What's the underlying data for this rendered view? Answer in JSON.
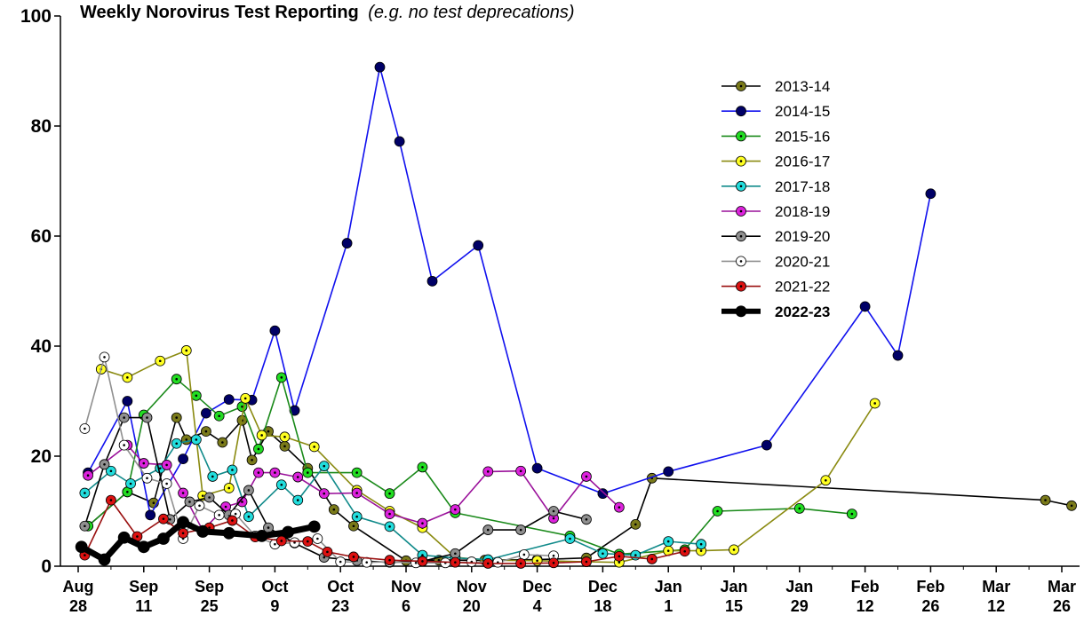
{
  "chart_data": {
    "type": "line",
    "title": "Weekly Norovirus Test Reporting",
    "subtitle": "(e.g. no test deprecations)",
    "xlabel": "",
    "ylabel": "",
    "ylim": [
      0,
      100
    ],
    "yticks": [
      0,
      20,
      40,
      60,
      80,
      100
    ],
    "xlim": [
      0,
      30.5
    ],
    "x_ticks": [
      {
        "x": 0,
        "line1": "Aug",
        "line2": "28"
      },
      {
        "x": 2,
        "line1": "Sep",
        "line2": "11"
      },
      {
        "x": 4,
        "line1": "Sep",
        "line2": "25"
      },
      {
        "x": 6,
        "line1": "Oct",
        "line2": "9"
      },
      {
        "x": 8,
        "line1": "Oct",
        "line2": "23"
      },
      {
        "x": 10,
        "line1": "Nov",
        "line2": "6"
      },
      {
        "x": 12,
        "line1": "Nov",
        "line2": "20"
      },
      {
        "x": 14,
        "line1": "Dec",
        "line2": "4"
      },
      {
        "x": 16,
        "line1": "Dec",
        "line2": "18"
      },
      {
        "x": 18,
        "line1": "Jan",
        "line2": "1"
      },
      {
        "x": 20,
        "line1": "Jan",
        "line2": "15"
      },
      {
        "x": 22,
        "line1": "Jan",
        "line2": "29"
      },
      {
        "x": 24,
        "line1": "Feb",
        "line2": "12"
      },
      {
        "x": 26,
        "line1": "Feb",
        "line2": "26"
      },
      {
        "x": 28,
        "line1": "Mar",
        "line2": "12"
      },
      {
        "x": 30,
        "line1": "Mar",
        "line2": "26"
      }
    ],
    "legend_position": "top-right",
    "series": [
      {
        "name": "2013-14",
        "color": "#000000",
        "fill": "#7a7a1a",
        "dot": "#000000",
        "points": [
          [
            0.3,
            7.3
          ],
          [
            1.5,
            13.5
          ],
          [
            2.3,
            11.5
          ],
          [
            3.0,
            27.0
          ],
          [
            3.3,
            23.0
          ],
          [
            3.9,
            24.5
          ],
          [
            4.4,
            22.5
          ],
          [
            5.0,
            26.5
          ],
          [
            5.3,
            19.3
          ],
          [
            5.8,
            24.5
          ],
          [
            6.3,
            21.8
          ],
          [
            7.0,
            17.8
          ],
          [
            7.8,
            10.3
          ],
          [
            8.4,
            7.3
          ],
          [
            10.0,
            1.0
          ],
          [
            11.0,
            1.1
          ],
          [
            12.4,
            1.1
          ],
          [
            14.0,
            1.2
          ],
          [
            15.5,
            1.5
          ],
          [
            17.0,
            7.6
          ],
          [
            17.5,
            16.0
          ],
          [
            29.5,
            12.0
          ],
          [
            30.3,
            11.0
          ]
        ]
      },
      {
        "name": "2014-15",
        "color": "#1010ee",
        "fill": "#000066",
        "dot": "#000066",
        "points": [
          [
            0.3,
            17.0
          ],
          [
            1.5,
            30.0
          ],
          [
            2.2,
            9.3
          ],
          [
            3.2,
            19.5
          ],
          [
            3.9,
            27.8
          ],
          [
            4.6,
            30.3
          ],
          [
            5.3,
            30.2
          ],
          [
            6.0,
            42.8
          ],
          [
            6.6,
            28.3
          ],
          [
            8.2,
            58.7
          ],
          [
            9.2,
            90.7
          ],
          [
            9.8,
            77.2
          ],
          [
            10.8,
            51.8
          ],
          [
            12.2,
            58.3
          ],
          [
            14.0,
            17.8
          ],
          [
            16.0,
            13.2
          ],
          [
            18.0,
            17.2
          ],
          [
            21.0,
            22.0
          ],
          [
            24.0,
            47.2
          ],
          [
            25.0,
            38.3
          ],
          [
            26.0,
            67.7
          ]
        ]
      },
      {
        "name": "2015-16",
        "color": "#1a8a1a",
        "fill": "#22dd22",
        "dot": "#000000",
        "points": [
          [
            0.3,
            7.3
          ],
          [
            1.5,
            13.5
          ],
          [
            2.0,
            27.5
          ],
          [
            3.0,
            34.0
          ],
          [
            3.6,
            31.0
          ],
          [
            4.3,
            27.3
          ],
          [
            5.0,
            29.0
          ],
          [
            5.5,
            21.3
          ],
          [
            6.2,
            34.3
          ],
          [
            7.0,
            17.0
          ],
          [
            8.5,
            17.0
          ],
          [
            9.5,
            13.2
          ],
          [
            10.5,
            18.0
          ],
          [
            11.5,
            9.7
          ],
          [
            15.0,
            5.5
          ],
          [
            16.5,
            2.2
          ],
          [
            18.5,
            3.0
          ],
          [
            19.5,
            10.0
          ],
          [
            22.0,
            10.5
          ],
          [
            23.6,
            9.5
          ]
        ]
      },
      {
        "name": "2016-17",
        "color": "#8a8a10",
        "fill": "#ffff22",
        "dot": "#000000",
        "points": [
          [
            0.7,
            35.8
          ],
          [
            1.5,
            34.3
          ],
          [
            2.5,
            37.3
          ],
          [
            3.3,
            39.2
          ],
          [
            3.8,
            12.8
          ],
          [
            4.6,
            14.2
          ],
          [
            5.1,
            30.5
          ],
          [
            5.6,
            23.8
          ],
          [
            6.3,
            23.5
          ],
          [
            7.2,
            21.7
          ],
          [
            8.5,
            13.8
          ],
          [
            9.5,
            10.0
          ],
          [
            10.5,
            7.0
          ],
          [
            11.5,
            1.6
          ],
          [
            12.5,
            1.1
          ],
          [
            14.0,
            1.0
          ],
          [
            15.5,
            0.8
          ],
          [
            16.5,
            0.7
          ],
          [
            18.0,
            2.8
          ],
          [
            19.0,
            2.8
          ],
          [
            20.0,
            3.0
          ],
          [
            22.8,
            15.6
          ],
          [
            24.3,
            29.6
          ]
        ]
      },
      {
        "name": "2017-18",
        "color": "#108a8a",
        "fill": "#22dddd",
        "dot": "#000000",
        "points": [
          [
            0.2,
            13.3
          ],
          [
            1.0,
            17.3
          ],
          [
            1.6,
            15.0
          ],
          [
            2.5,
            17.8
          ],
          [
            3.0,
            22.3
          ],
          [
            3.6,
            23.0
          ],
          [
            4.1,
            16.3
          ],
          [
            4.7,
            17.5
          ],
          [
            5.2,
            9.0
          ],
          [
            6.2,
            14.8
          ],
          [
            6.7,
            12.0
          ],
          [
            7.5,
            18.2
          ],
          [
            8.5,
            9.0
          ],
          [
            9.5,
            7.2
          ],
          [
            10.5,
            2.0
          ],
          [
            11.5,
            1.5
          ],
          [
            12.5,
            1.2
          ],
          [
            15.0,
            5.0
          ],
          [
            16.0,
            2.3
          ],
          [
            17.0,
            2.0
          ],
          [
            18.0,
            4.5
          ],
          [
            19.0,
            4.0
          ]
        ]
      },
      {
        "name": "2018-19",
        "color": "#9a109a",
        "fill": "#dd22dd",
        "dot": "#000000",
        "points": [
          [
            0.3,
            16.5
          ],
          [
            1.5,
            22.0
          ],
          [
            2.0,
            18.7
          ],
          [
            2.7,
            18.4
          ],
          [
            3.2,
            13.3
          ],
          [
            3.8,
            6.5
          ],
          [
            4.5,
            10.8
          ],
          [
            5.0,
            11.7
          ],
          [
            5.5,
            17.0
          ],
          [
            6.0,
            17.0
          ],
          [
            6.7,
            16.2
          ],
          [
            7.5,
            13.2
          ],
          [
            8.5,
            13.3
          ],
          [
            9.5,
            9.5
          ],
          [
            10.5,
            7.8
          ],
          [
            11.5,
            10.3
          ],
          [
            12.5,
            17.2
          ],
          [
            13.5,
            17.3
          ],
          [
            14.5,
            8.7
          ],
          [
            15.5,
            16.3
          ],
          [
            16.5,
            10.7
          ]
        ]
      },
      {
        "name": "2019-20",
        "color": "#000000",
        "fill": "#909090",
        "dot": "#000000",
        "points": [
          [
            0.2,
            7.3
          ],
          [
            0.8,
            18.5
          ],
          [
            1.4,
            27.0
          ],
          [
            2.1,
            27.0
          ],
          [
            2.8,
            8.5
          ],
          [
            3.4,
            11.7
          ],
          [
            4.0,
            12.5
          ],
          [
            4.6,
            9.3
          ],
          [
            5.2,
            13.8
          ],
          [
            5.8,
            7.0
          ],
          [
            6.6,
            4.2
          ],
          [
            7.5,
            1.6
          ],
          [
            8.5,
            1.0
          ],
          [
            9.5,
            0.7
          ],
          [
            10.5,
            0.9
          ],
          [
            11.5,
            2.3
          ],
          [
            12.5,
            6.6
          ],
          [
            13.5,
            6.6
          ],
          [
            14.5,
            10.0
          ],
          [
            15.5,
            8.5
          ]
        ]
      },
      {
        "name": "2020-21",
        "color": "#909090",
        "fill": "#ffffff",
        "dot": "#000000",
        "points": [
          [
            0.2,
            25.0
          ],
          [
            0.8,
            38.0
          ],
          [
            1.4,
            22.0
          ],
          [
            2.1,
            16.0
          ],
          [
            2.7,
            15.0
          ],
          [
            3.2,
            5.0
          ],
          [
            3.7,
            11.0
          ],
          [
            4.3,
            9.3
          ],
          [
            4.8,
            9.5
          ],
          [
            5.4,
            5.5
          ],
          [
            6.0,
            4.0
          ],
          [
            6.6,
            4.3
          ],
          [
            7.3,
            5.0
          ],
          [
            8.0,
            0.8
          ],
          [
            8.8,
            0.7
          ],
          [
            9.5,
            0.8
          ],
          [
            10.3,
            0.6
          ],
          [
            11.2,
            0.6
          ],
          [
            12.0,
            0.8
          ],
          [
            12.8,
            0.7
          ],
          [
            13.6,
            2.1
          ],
          [
            14.5,
            1.9
          ]
        ]
      },
      {
        "name": "2021-22",
        "color": "#9a1010",
        "fill": "#dd1111",
        "dot": "#000000",
        "points": [
          [
            0.2,
            2.0
          ],
          [
            1.0,
            12.0
          ],
          [
            1.8,
            5.4
          ],
          [
            2.6,
            8.6
          ],
          [
            3.2,
            6.0
          ],
          [
            4.0,
            7.0
          ],
          [
            4.7,
            8.3
          ],
          [
            5.4,
            5.3
          ],
          [
            6.2,
            4.6
          ],
          [
            7.0,
            4.5
          ],
          [
            7.6,
            2.6
          ],
          [
            8.4,
            1.7
          ],
          [
            9.5,
            1.1
          ],
          [
            10.5,
            0.9
          ],
          [
            11.5,
            0.7
          ],
          [
            12.5,
            0.5
          ],
          [
            13.5,
            0.5
          ],
          [
            14.5,
            0.6
          ],
          [
            15.5,
            0.8
          ],
          [
            16.5,
            1.8
          ],
          [
            17.5,
            1.3
          ],
          [
            18.5,
            2.7
          ]
        ]
      },
      {
        "name": "2022-23",
        "color": "#000000",
        "fill": "#000000",
        "dot": "#000000",
        "bold": true,
        "points": [
          [
            0.1,
            3.5
          ],
          [
            0.8,
            1.2
          ],
          [
            1.4,
            5.2
          ],
          [
            2.0,
            3.5
          ],
          [
            2.6,
            5.0
          ],
          [
            3.2,
            8.0
          ],
          [
            3.8,
            6.3
          ],
          [
            4.6,
            6.0
          ],
          [
            5.6,
            5.5
          ],
          [
            6.4,
            6.2
          ],
          [
            7.2,
            7.2
          ]
        ]
      }
    ]
  }
}
